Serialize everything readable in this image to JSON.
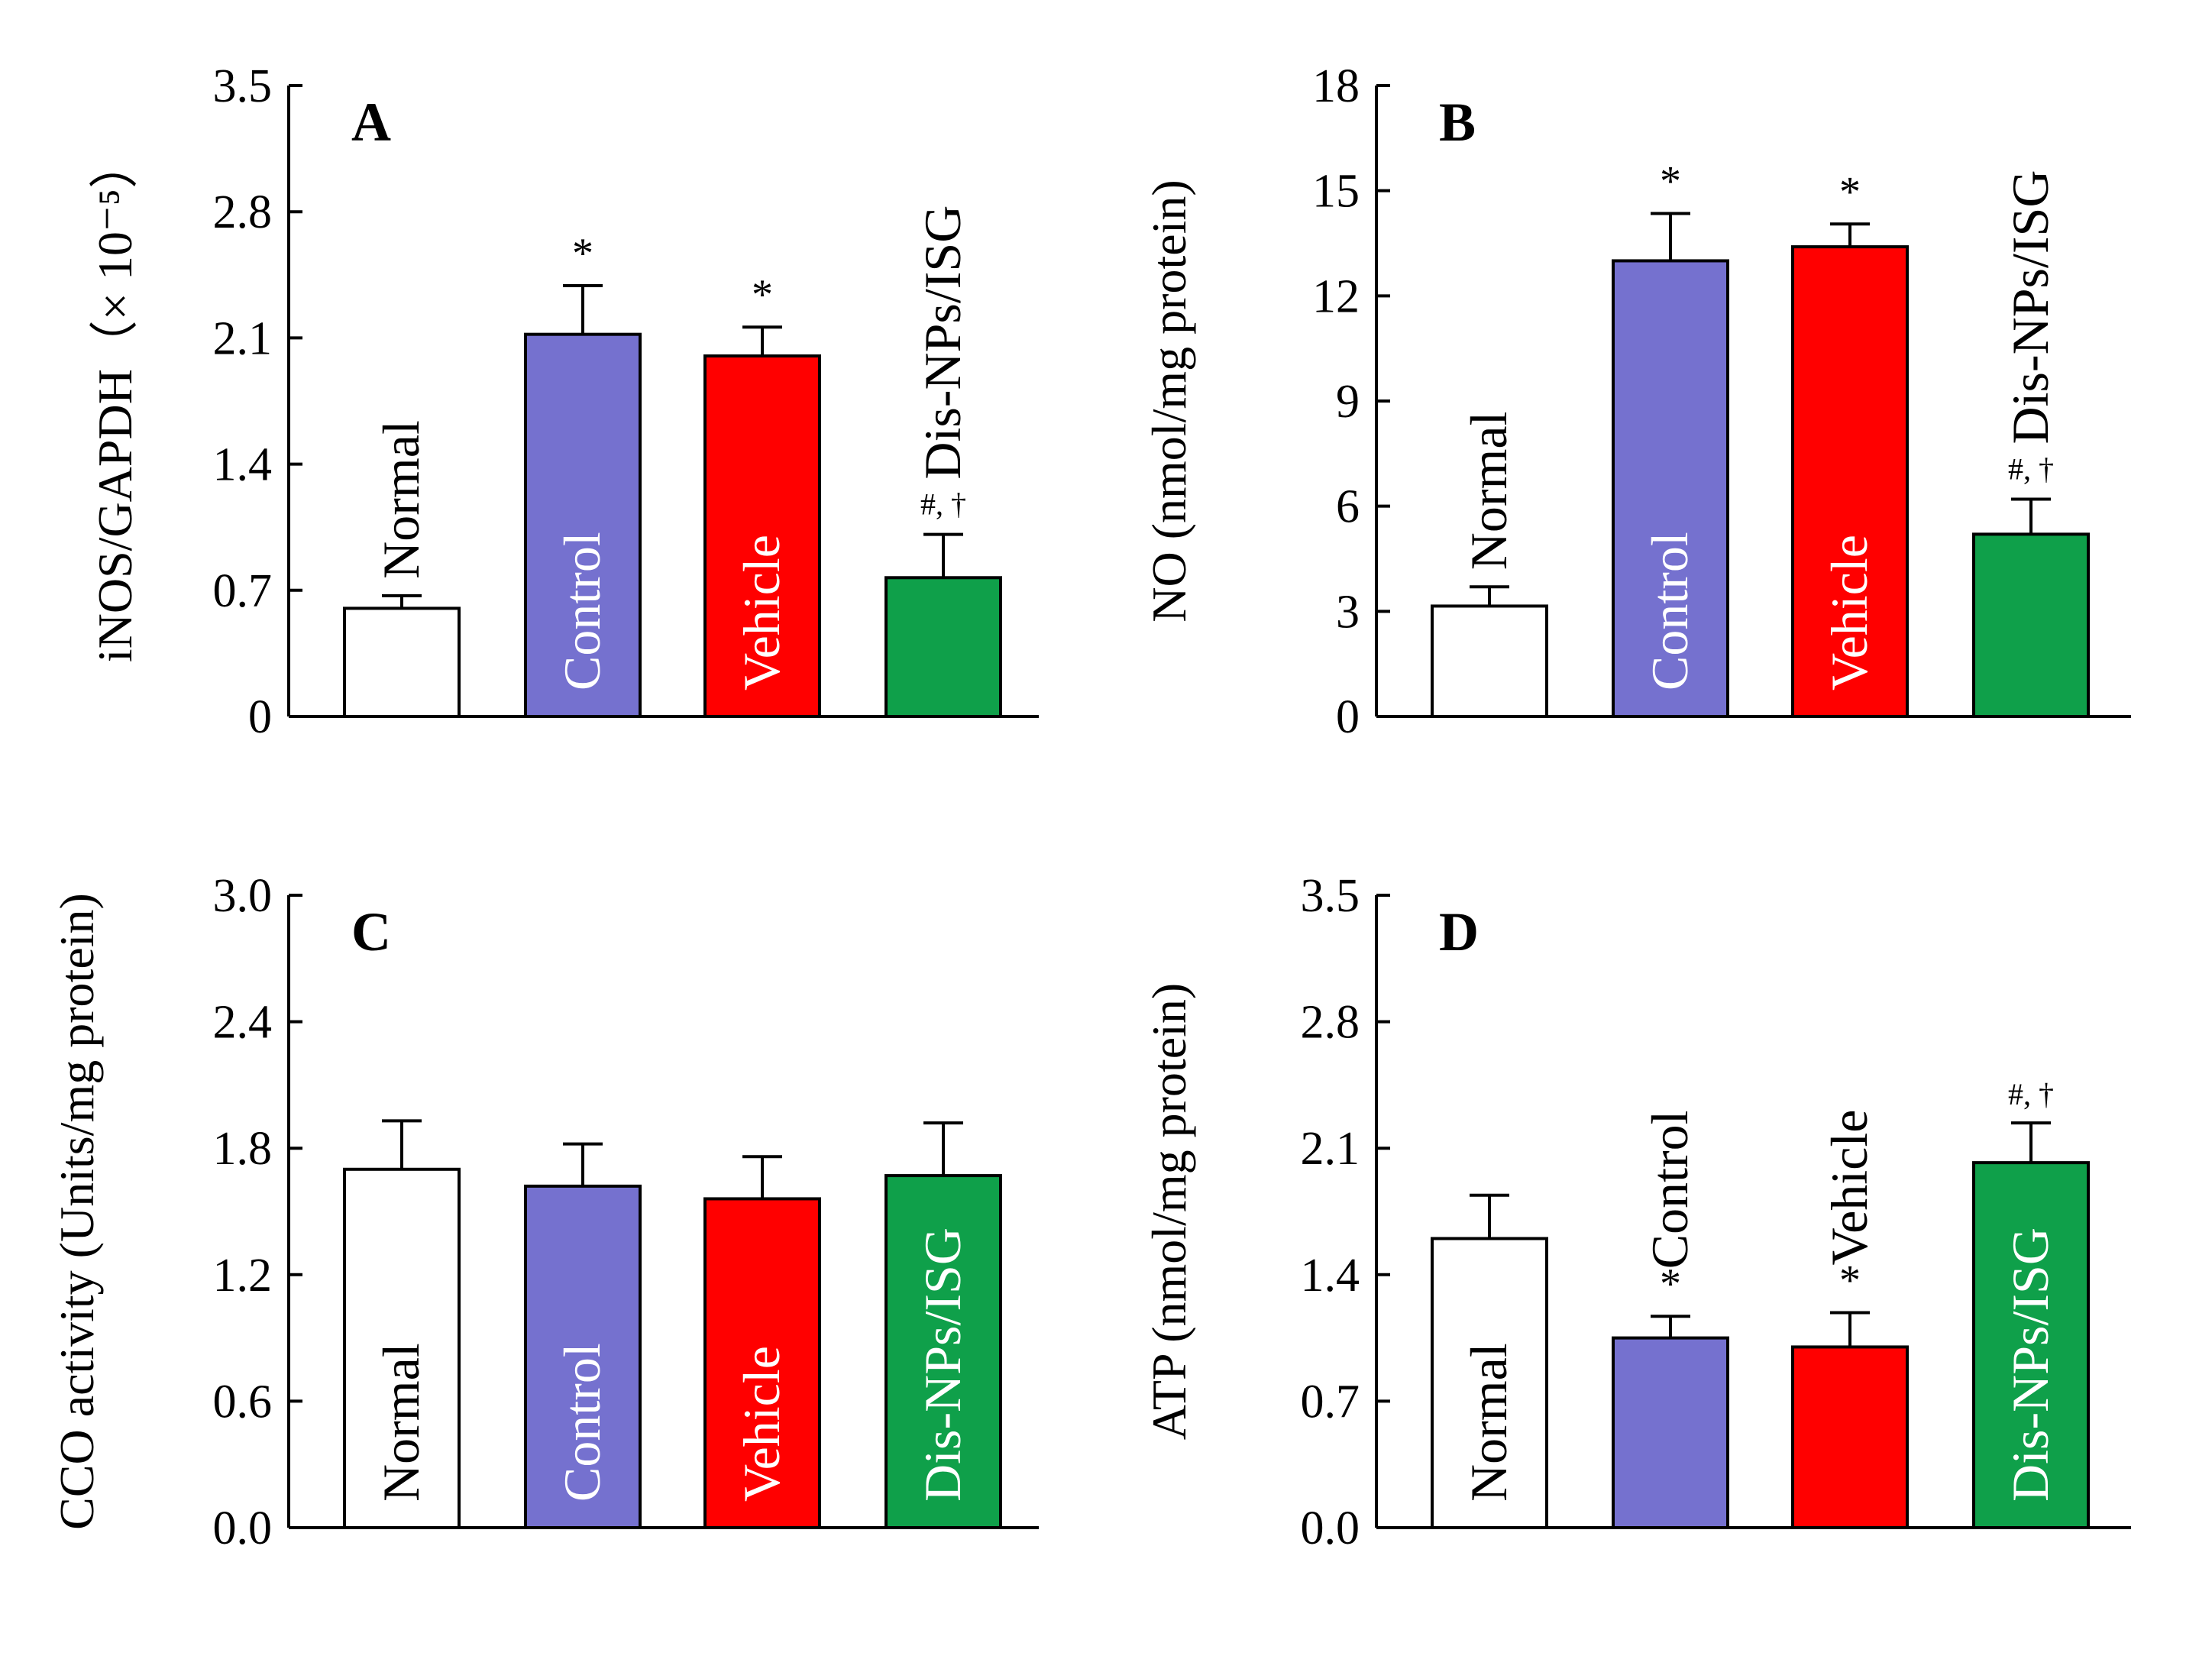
{
  "chart_data": [
    {
      "type": "bar",
      "panel": "A",
      "ylabel": "iNOS/GAPDH（× 10⁻⁵）",
      "ylim": [
        0,
        3.5
      ],
      "yticks": [
        "0",
        "0.7",
        "1.4",
        "2.1",
        "2.8",
        "3.5"
      ],
      "categories": [
        "Normal",
        "Control",
        "Vehicle",
        "Dis-NPs/ISG"
      ],
      "values": [
        0.6,
        2.12,
        2.0,
        0.77
      ],
      "errors": [
        0.07,
        0.27,
        0.16,
        0.24
      ],
      "colors": [
        "#ffffff",
        "#7571cf",
        "#ff0000",
        "#0fa04a"
      ],
      "annotations": [
        "",
        "*",
        "*",
        "#, †"
      ],
      "label_position": [
        "above",
        "inside",
        "inside",
        "above"
      ]
    },
    {
      "type": "bar",
      "panel": "B",
      "ylabel": "NO (nmol/mg protein)",
      "ylim": [
        0,
        18
      ],
      "yticks": [
        "0",
        "3",
        "6",
        "9",
        "12",
        "15",
        "18"
      ],
      "categories": [
        "Normal",
        "Control",
        "Vehicle",
        "Dis-NPs/ISG"
      ],
      "values": [
        3.15,
        13.0,
        13.4,
        5.2
      ],
      "errors": [
        0.55,
        1.35,
        0.65,
        1.0
      ],
      "colors": [
        "#ffffff",
        "#7571cf",
        "#ff0000",
        "#0fa04a"
      ],
      "annotations": [
        "",
        "*",
        "*",
        "#, †"
      ],
      "label_position": [
        "above",
        "inside",
        "inside",
        "above"
      ]
    },
    {
      "type": "bar",
      "panel": "C",
      "ylabel": "CCO activity (Units/mg protein)",
      "ylim": [
        0,
        3.0
      ],
      "yticks": [
        "0.0",
        "0.6",
        "1.2",
        "1.8",
        "2.4",
        "3.0"
      ],
      "categories": [
        "Normal",
        "Control",
        "Vehicle",
        "Dis-NPs/ISG"
      ],
      "values": [
        1.7,
        1.62,
        1.56,
        1.67
      ],
      "errors": [
        0.23,
        0.2,
        0.2,
        0.25
      ],
      "colors": [
        "#ffffff",
        "#7571cf",
        "#ff0000",
        "#0fa04a"
      ],
      "annotations": [
        "",
        "",
        "",
        ""
      ],
      "label_position": [
        "inside",
        "inside",
        "inside",
        "inside"
      ]
    },
    {
      "type": "bar",
      "panel": "D",
      "ylabel": "ATP (nmol/mg protein)",
      "ylim": [
        0,
        3.5
      ],
      "yticks": [
        "0.0",
        "0.7",
        "1.4",
        "2.1",
        "2.8",
        "3.5"
      ],
      "categories": [
        "Normal",
        "Control",
        "Vehicle",
        "Dis-NPs/ISG"
      ],
      "values": [
        1.6,
        1.05,
        1.0,
        2.02
      ],
      "errors": [
        0.24,
        0.12,
        0.19,
        0.22
      ],
      "colors": [
        "#ffffff",
        "#7571cf",
        "#ff0000",
        "#0fa04a"
      ],
      "annotations": [
        "",
        "*",
        "*",
        "#, †"
      ],
      "label_position": [
        "inside",
        "above",
        "above",
        "inside"
      ]
    }
  ]
}
